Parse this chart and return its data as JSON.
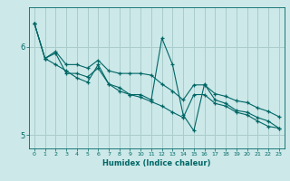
{
  "title": "",
  "xlabel": "Humidex (Indice chaleur)",
  "ylabel": "",
  "bg_color": "#cce8e8",
  "line_color": "#006666",
  "grid_color": "#aacccc",
  "xlim": [
    -0.5,
    23.5
  ],
  "ylim": [
    4.85,
    6.45
  ],
  "yticks": [
    5,
    6
  ],
  "xticks": [
    0,
    1,
    2,
    3,
    4,
    5,
    6,
    7,
    8,
    9,
    10,
    11,
    12,
    13,
    14,
    15,
    16,
    17,
    18,
    19,
    20,
    21,
    22,
    23
  ],
  "series": [
    [
      0,
      6.27
    ],
    [
      1,
      5.87
    ],
    [
      2,
      5.95
    ],
    [
      3,
      5.8
    ],
    [
      4,
      5.8
    ],
    [
      5,
      5.76
    ],
    [
      6,
      5.85
    ],
    [
      7,
      5.73
    ],
    [
      8,
      5.7
    ],
    [
      9,
      5.7
    ],
    [
      10,
      5.7
    ],
    [
      11,
      5.68
    ],
    [
      12,
      5.58
    ],
    [
      13,
      5.5
    ],
    [
      14,
      5.4
    ],
    [
      15,
      5.57
    ],
    [
      16,
      5.57
    ],
    [
      17,
      5.47
    ],
    [
      18,
      5.44
    ],
    [
      19,
      5.39
    ],
    [
      20,
      5.37
    ],
    [
      21,
      5.31
    ],
    [
      22,
      5.27
    ],
    [
      23,
      5.21
    ]
  ],
  "series2": [
    [
      0,
      6.27
    ],
    [
      1,
      5.87
    ],
    [
      2,
      5.8
    ],
    [
      3,
      5.73
    ],
    [
      4,
      5.65
    ],
    [
      5,
      5.6
    ],
    [
      6,
      5.8
    ],
    [
      7,
      5.58
    ],
    [
      8,
      5.5
    ],
    [
      9,
      5.46
    ],
    [
      10,
      5.46
    ],
    [
      11,
      5.4
    ],
    [
      12,
      6.1
    ],
    [
      13,
      5.8
    ],
    [
      14,
      5.23
    ],
    [
      15,
      5.05
    ],
    [
      16,
      5.58
    ],
    [
      17,
      5.4
    ],
    [
      18,
      5.36
    ],
    [
      19,
      5.28
    ],
    [
      20,
      5.26
    ],
    [
      21,
      5.2
    ],
    [
      22,
      5.16
    ],
    [
      23,
      5.08
    ]
  ],
  "series3": [
    [
      0,
      6.27
    ],
    [
      1,
      5.87
    ],
    [
      2,
      5.93
    ],
    [
      3,
      5.7
    ],
    [
      4,
      5.7
    ],
    [
      5,
      5.66
    ],
    [
      6,
      5.76
    ],
    [
      7,
      5.58
    ],
    [
      8,
      5.54
    ],
    [
      9,
      5.46
    ],
    [
      10,
      5.43
    ],
    [
      11,
      5.38
    ],
    [
      12,
      5.33
    ],
    [
      13,
      5.26
    ],
    [
      14,
      5.2
    ],
    [
      15,
      5.46
    ],
    [
      16,
      5.46
    ],
    [
      17,
      5.36
    ],
    [
      18,
      5.33
    ],
    [
      19,
      5.26
    ],
    [
      20,
      5.23
    ],
    [
      21,
      5.16
    ],
    [
      22,
      5.1
    ],
    [
      23,
      5.08
    ]
  ]
}
